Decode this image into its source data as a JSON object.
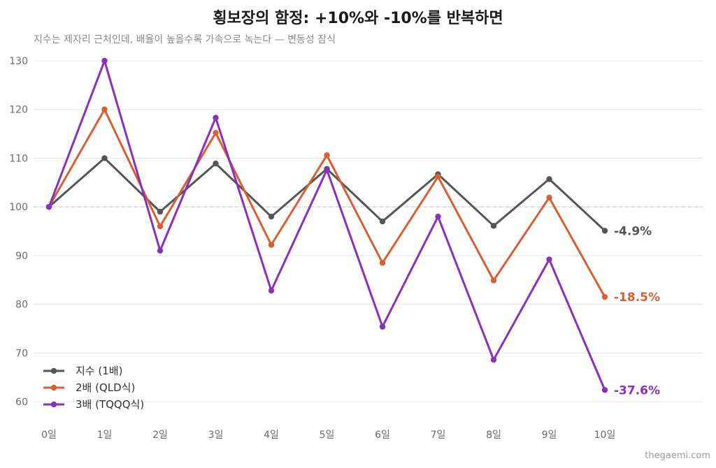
{
  "title": "횡보장의 함정: +10%와 -10%를 반복하면",
  "subtitle": "지수는 제자리 근처인데, 배율이 높을수록 가속으로 녹는다 — 변동성 잠식",
  "watermark": "thegaemi.com",
  "chart_data": {
    "type": "line",
    "categories": [
      "0일",
      "1일",
      "2일",
      "3일",
      "4일",
      "5일",
      "6일",
      "7일",
      "8일",
      "9일",
      "10일"
    ],
    "ylim": [
      60,
      130
    ],
    "yticks": [
      60,
      70,
      80,
      90,
      100,
      110,
      120,
      130
    ],
    "reference_line": 100,
    "grid": true,
    "legend_position": "bottom-left",
    "series": [
      {
        "name": "지수 (1배)",
        "color": "#555555",
        "end_label": "-4.9%",
        "values": [
          100,
          110,
          99,
          108.9,
          98.0,
          107.8,
          97.0,
          106.7,
          96.1,
          105.7,
          95.1
        ]
      },
      {
        "name": "2배 (QLD식)",
        "color": "#d95f30",
        "end_label": "-18.5%",
        "values": [
          100,
          120,
          96,
          115.2,
          92.2,
          110.6,
          88.5,
          106.2,
          84.9,
          101.9,
          81.5
        ]
      },
      {
        "name": "3배 (TQQQ식)",
        "color": "#8a2fbf",
        "end_label": "-37.6%",
        "values": [
          100,
          130,
          91,
          118.3,
          82.8,
          107.6,
          75.4,
          98.0,
          68.6,
          89.2,
          62.4
        ]
      }
    ]
  }
}
